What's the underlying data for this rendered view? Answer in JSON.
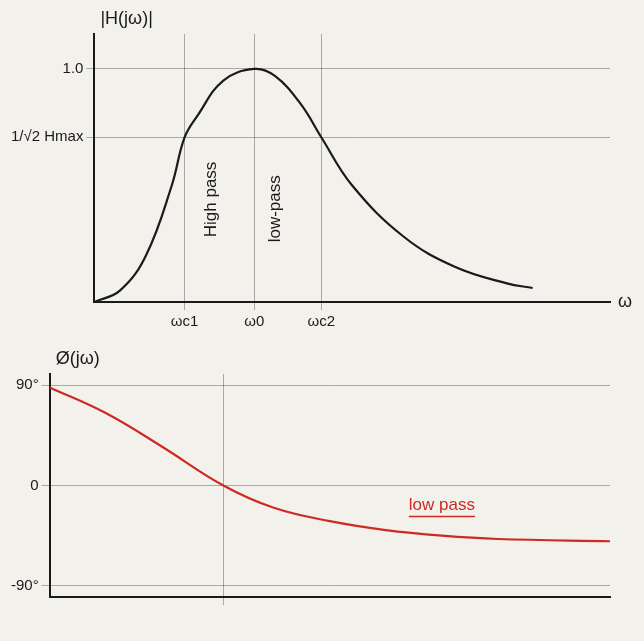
{
  "chart_data": [
    {
      "type": "line",
      "y_label": "|H(jω)|",
      "x_label": "ω",
      "x": [
        0,
        0.5,
        1,
        1.5,
        1.75,
        2,
        2.5,
        3.1,
        3.5,
        4,
        4.4,
        5,
        6,
        7,
        8,
        8.5
      ],
      "values": [
        0,
        0.05,
        0.2,
        0.5,
        0.707,
        0.8,
        0.95,
        1.0,
        0.97,
        0.85,
        0.707,
        0.5,
        0.28,
        0.15,
        0.08,
        0.06
      ],
      "color": "#1a1a1a",
      "xlim": [
        0,
        10
      ],
      "xticks": [
        {
          "value": 1.75,
          "label": "ωc1"
        },
        {
          "value": 3.1,
          "label": "ω0"
        },
        {
          "value": 4.4,
          "label": "ωc2"
        }
      ],
      "ylim": [
        0,
        1.15
      ],
      "yticks": [
        {
          "value": 0.707,
          "label": "1/√2 Hmax"
        },
        {
          "value": 1,
          "label": "1.0"
        }
      ],
      "grid": true,
      "annotations": [
        {
          "text": "High pass",
          "x": 2.27,
          "y": 0.44
        },
        {
          "text": "low-pass",
          "x": 3.5,
          "y": 0.4
        }
      ]
    },
    {
      "type": "line",
      "y_label": "Ø(jω)",
      "x": [
        0,
        1,
        2,
        3.1,
        4,
        5,
        6,
        7,
        8,
        10
      ],
      "values": [
        88,
        65,
        35,
        0,
        -20,
        -32,
        -40,
        -45,
        -48,
        -50
      ],
      "color": "#cc2a22",
      "xlim": [
        0,
        10
      ],
      "xticks": [
        3.1
      ],
      "ylim": [
        -100,
        100
      ],
      "yticks": [
        {
          "value": 90,
          "label": "90°"
        },
        0,
        {
          "value": -90,
          "label": "-90°"
        }
      ],
      "grid": true,
      "tick_labels": "y",
      "annotations": [
        {
          "text": "low pass",
          "x": 7,
          "y": -18
        }
      ]
    }
  ]
}
